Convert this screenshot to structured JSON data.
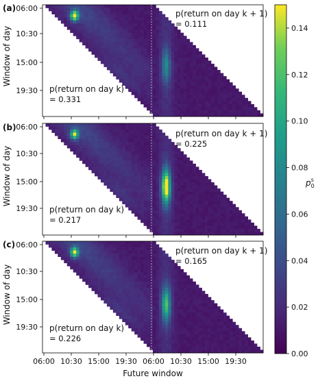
{
  "chart_data": {
    "type": "heatmap",
    "xlabel": "Future window",
    "ylabel": "Window of day",
    "x_ticks": [
      "06:00",
      "10:30",
      "15:00",
      "19:30",
      "06:00",
      "10:30",
      "15:00",
      "19:30"
    ],
    "y_ticks": [
      "06:00",
      "10:30",
      "15:00",
      "19:30"
    ],
    "colorbar": {
      "label": "p",
      "label_sub": "0",
      "label_sup": "s",
      "min": 0.0,
      "max": 0.15,
      "ticks": [
        "0.00",
        "0.02",
        "0.04",
        "0.06",
        "0.08",
        "0.10",
        "0.12",
        "0.14"
      ],
      "colormap": "viridis"
    },
    "panels": [
      {
        "label": "(a)",
        "annotation_day_k": "p(return on day k)",
        "value_day_k": "= 0.331",
        "annotation_day_k1": "p(return on day k + 1)",
        "value_day_k1": "= 0.111",
        "hotspots": [
          {
            "window": "08:00",
            "future": "12:30",
            "day": "k",
            "peak": 0.14
          },
          {
            "window": "18:30",
            "future": "08:30",
            "day": "k+1",
            "peak": 0.06
          }
        ]
      },
      {
        "label": "(b)",
        "annotation_day_k": "p(return on day k)",
        "value_day_k": "= 0.217",
        "annotation_day_k1": "p(return on day k + 1)",
        "value_day_k1": "= 0.225",
        "hotspots": [
          {
            "window": "08:00",
            "future": "12:30",
            "day": "k",
            "peak": 0.12
          },
          {
            "window": "19:00",
            "future": "08:30",
            "day": "k+1",
            "peak": 0.15
          }
        ]
      },
      {
        "label": "(c)",
        "annotation_day_k": "p(return on day k)",
        "value_day_k": "= 0.226",
        "annotation_day_k1": "p(return on day k + 1)",
        "value_day_k1": "= 0.165",
        "hotspots": [
          {
            "window": "08:00",
            "future": "12:30",
            "day": "k",
            "peak": 0.13
          },
          {
            "window": "19:00",
            "future": "08:30",
            "day": "k+1",
            "peak": 0.1
          }
        ]
      }
    ]
  }
}
